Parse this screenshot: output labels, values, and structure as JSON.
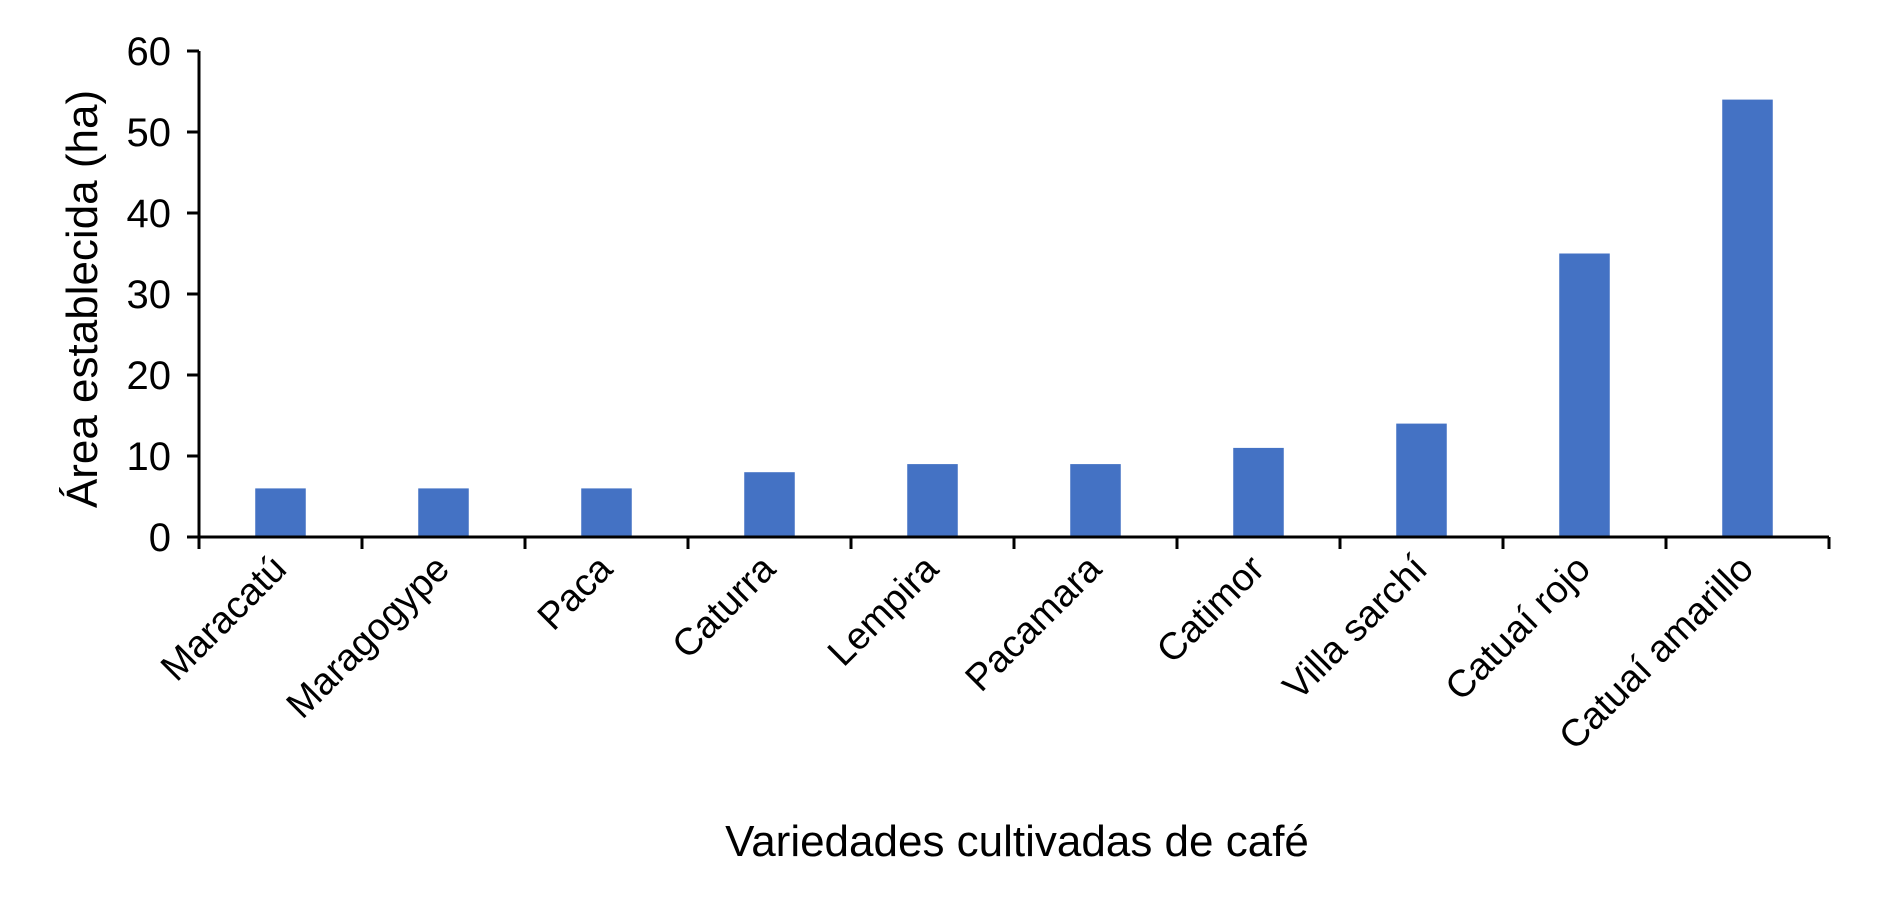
{
  "chart_data": {
    "type": "bar",
    "title": "",
    "xlabel": "Variedades cultivadas de café",
    "ylabel": "Área establecida (ha)",
    "categories": [
      "Maracatú",
      "Maragogype",
      "Paca",
      "Caturra",
      "Lempira",
      "Pacamara",
      "Catimor",
      "Villa sarchí",
      "Catuaí rojo",
      "Catuaí amarillo"
    ],
    "values": [
      6,
      6,
      6,
      8,
      9,
      9,
      11,
      14,
      35,
      54
    ],
    "series": [
      {
        "name": "Área establecida (ha)",
        "values": [
          6,
          6,
          6,
          8,
          9,
          9,
          11,
          14,
          35,
          54
        ],
        "color": "#4472C4"
      }
    ],
    "ylim": [
      0,
      60
    ],
    "yticks": [
      0,
      10,
      20,
      30,
      40,
      50,
      60
    ],
    "grid": false,
    "legend": null,
    "x_tick_rotation": -45
  },
  "colors": {
    "bar": "#4472C4",
    "axis": "#000000",
    "background": "#FFFFFF"
  }
}
